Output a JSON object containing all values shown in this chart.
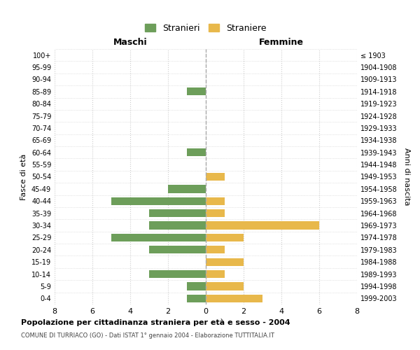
{
  "age_groups": [
    "0-4",
    "5-9",
    "10-14",
    "15-19",
    "20-24",
    "25-29",
    "30-34",
    "35-39",
    "40-44",
    "45-49",
    "50-54",
    "55-59",
    "60-64",
    "65-69",
    "70-74",
    "75-79",
    "80-84",
    "85-89",
    "90-94",
    "95-99",
    "100+"
  ],
  "birth_years": [
    "1999-2003",
    "1994-1998",
    "1989-1993",
    "1984-1988",
    "1979-1983",
    "1974-1978",
    "1969-1973",
    "1964-1968",
    "1959-1963",
    "1954-1958",
    "1949-1953",
    "1944-1948",
    "1939-1943",
    "1934-1938",
    "1929-1933",
    "1924-1928",
    "1919-1923",
    "1914-1918",
    "1909-1913",
    "1904-1908",
    "≤ 1903"
  ],
  "maschi": [
    1,
    1,
    3,
    0,
    3,
    5,
    3,
    3,
    5,
    2,
    0,
    0,
    1,
    0,
    0,
    0,
    0,
    1,
    0,
    0,
    0
  ],
  "femmine": [
    3,
    2,
    1,
    2,
    1,
    2,
    6,
    1,
    1,
    0,
    1,
    0,
    0,
    0,
    0,
    0,
    0,
    0,
    0,
    0,
    0
  ],
  "male_color": "#6d9e5a",
  "female_color": "#e8b84b",
  "title": "Popolazione per cittadinanza straniera per età e sesso - 2004",
  "subtitle": "COMUNE DI TURRIACO (GO) - Dati ISTAT 1° gennaio 2004 - Elaborazione TUTTITALIA.IT",
  "xlabel_left": "Maschi",
  "xlabel_right": "Femmine",
  "ylabel_left": "Fasce di età",
  "ylabel_right": "Anni di nascita",
  "legend_male": "Stranieri",
  "legend_female": "Straniere",
  "xlim": 8,
  "background_color": "#ffffff",
  "grid_color": "#cccccc"
}
